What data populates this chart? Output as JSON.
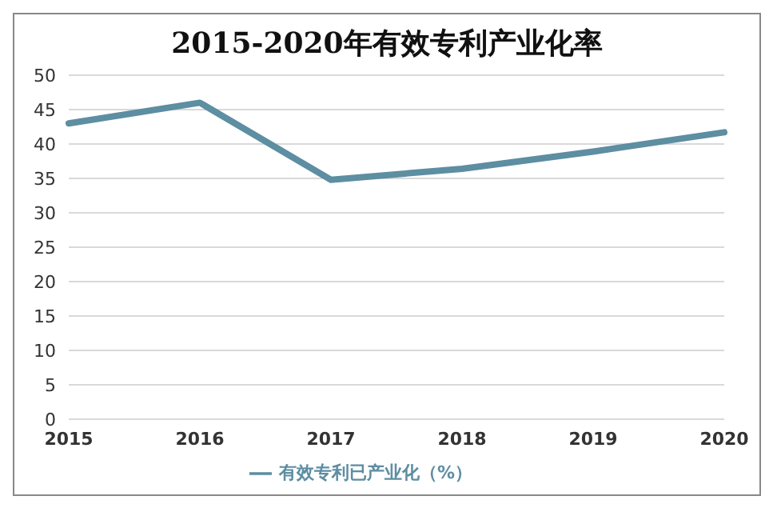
{
  "chart_data": {
    "type": "line",
    "title": "2015-2020年有效专利产业化率",
    "categories": [
      "2015",
      "2016",
      "2017",
      "2018",
      "2019",
      "2020"
    ],
    "series": [
      {
        "name": "有效专利已产业化（%）",
        "color": "#5d8ea2",
        "values": [
          43.0,
          46.0,
          34.8,
          36.4,
          38.9,
          41.7
        ]
      }
    ],
    "ylim": [
      0,
      50
    ],
    "yticks": [
      0,
      5,
      10,
      15,
      20,
      25,
      30,
      35,
      40,
      45,
      50
    ],
    "grid": "y",
    "legend": "bottom",
    "marker": "none",
    "line_style": "solid"
  }
}
